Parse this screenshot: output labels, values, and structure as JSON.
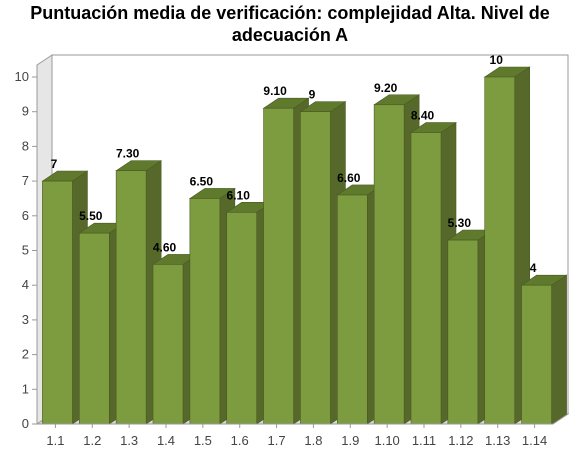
{
  "chart_data": {
    "type": "bar",
    "title_lines": [
      "Puntuación media de verificación: complejidad Alta. Nivel de",
      "adecuación A"
    ],
    "categories": [
      "1.1",
      "1.2",
      "1.3",
      "1.4",
      "1.5",
      "1.6",
      "1.7",
      "1.8",
      "1.9",
      "1.10",
      "1.11",
      "1.12",
      "1.13",
      "1.14"
    ],
    "values": [
      7,
      5.5,
      7.3,
      4.6,
      6.5,
      6.1,
      9.1,
      9,
      6.6,
      9.2,
      8.4,
      5.3,
      10,
      4
    ],
    "value_labels": [
      "7",
      "5.50",
      "7.30",
      "4.60",
      "6.50",
      "6.10",
      "9.10",
      "9",
      "6.60",
      "9.20",
      "8.40",
      "5.30",
      "10",
      "4"
    ],
    "ylim": [
      0,
      10
    ],
    "yticks": [
      0,
      1,
      2,
      3,
      4,
      5,
      6,
      7,
      8,
      9,
      10
    ],
    "grid": false,
    "style": "3d-bar",
    "colors": {
      "bar_front": "#7d9b3f",
      "bar_top": "#5f7a2c",
      "bar_side": "#56692a",
      "bar_edge": "#4a5a22",
      "wall": "#e6e6e6",
      "floor": "#d9d9d9",
      "axis": "#999999"
    }
  }
}
